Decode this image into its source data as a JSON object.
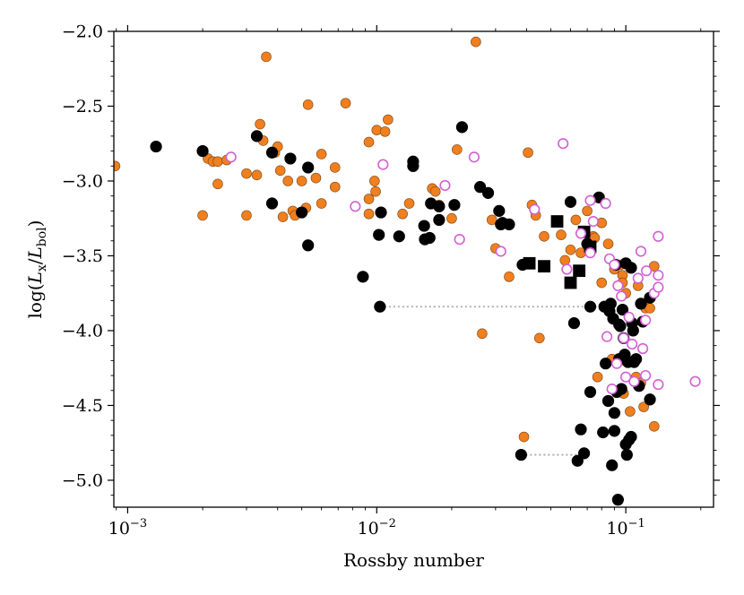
{
  "chart_data": {
    "type": "scatter",
    "xlabel": "Rossby number",
    "ylabel_parts": [
      "log(",
      "L",
      "x",
      "/",
      "L",
      "bol",
      ")"
    ],
    "xscale": "log",
    "xlim": [
      0.00088,
      0.225
    ],
    "ylim": [
      -5.18,
      -2.0
    ],
    "x_ticks": [
      {
        "value": 0.001,
        "base": "10",
        "exp": "−3"
      },
      {
        "value": 0.01,
        "base": "10",
        "exp": "−2"
      },
      {
        "value": 0.1,
        "base": "10",
        "exp": "−1"
      }
    ],
    "y_ticks": [
      {
        "value": -2.0,
        "label": "−2.0"
      },
      {
        "value": -2.5,
        "label": "−2.5"
      },
      {
        "value": -3.0,
        "label": "−3.0"
      },
      {
        "value": -3.5,
        "label": "−3.5"
      },
      {
        "value": -4.0,
        "label": "−4.0"
      },
      {
        "value": -4.5,
        "label": "−4.5"
      },
      {
        "value": -5.0,
        "label": "−5.0"
      }
    ],
    "series": [
      {
        "marker": "circle-filled",
        "color": "#f07f1e",
        "edge": "#7a4a1c",
        "points": [
          [
            0.00089,
            -2.9
          ],
          [
            0.002,
            -3.23
          ],
          [
            0.0021,
            -2.85
          ],
          [
            0.0022,
            -2.87
          ],
          [
            0.0023,
            -2.87
          ],
          [
            0.0025,
            -2.86
          ],
          [
            0.0023,
            -3.02
          ],
          [
            0.003,
            -2.95
          ],
          [
            0.003,
            -3.23
          ],
          [
            0.0033,
            -2.96
          ],
          [
            0.0034,
            -2.62
          ],
          [
            0.0035,
            -2.73
          ],
          [
            0.0036,
            -2.17
          ],
          [
            0.0039,
            -2.81
          ],
          [
            0.004,
            -2.77
          ],
          [
            0.0041,
            -2.93
          ],
          [
            0.0042,
            -3.24
          ],
          [
            0.0044,
            -3.0
          ],
          [
            0.0046,
            -3.2
          ],
          [
            0.0047,
            -3.23
          ],
          [
            0.005,
            -3.0
          ],
          [
            0.0052,
            -3.18
          ],
          [
            0.0053,
            -2.49
          ],
          [
            0.0057,
            -2.98
          ],
          [
            0.006,
            -3.15
          ],
          [
            0.006,
            -2.82
          ],
          [
            0.0068,
            -3.04
          ],
          [
            0.0068,
            -2.91
          ],
          [
            0.0075,
            -2.48
          ],
          [
            0.0093,
            -3.12
          ],
          [
            0.0093,
            -3.22
          ],
          [
            0.0093,
            -2.74
          ],
          [
            0.0098,
            -3.0
          ],
          [
            0.0099,
            -3.07
          ],
          [
            0.01,
            -2.66
          ],
          [
            0.0108,
            -2.67
          ],
          [
            0.0111,
            -2.59
          ],
          [
            0.0127,
            -3.22
          ],
          [
            0.0135,
            -3.15
          ],
          [
            0.0167,
            -3.05
          ],
          [
            0.0172,
            -3.07
          ],
          [
            0.0178,
            -3.16
          ],
          [
            0.02,
            -3.25
          ],
          [
            0.021,
            -2.79
          ],
          [
            0.025,
            -2.07
          ],
          [
            0.0265,
            -4.02
          ],
          [
            0.029,
            -3.26
          ],
          [
            0.03,
            -3.45
          ],
          [
            0.034,
            -3.64
          ],
          [
            0.039,
            -4.71
          ],
          [
            0.0405,
            -2.81
          ],
          [
            0.042,
            -3.16
          ],
          [
            0.0435,
            -3.23
          ],
          [
            0.045,
            -4.05
          ],
          [
            0.047,
            -3.37
          ],
          [
            0.055,
            -3.36
          ],
          [
            0.057,
            -3.53
          ],
          [
            0.06,
            -3.46
          ],
          [
            0.063,
            -3.26
          ],
          [
            0.066,
            -3.48
          ],
          [
            0.07,
            -3.2
          ],
          [
            0.074,
            -3.37
          ],
          [
            0.075,
            -3.38
          ],
          [
            0.077,
            -4.31
          ],
          [
            0.08,
            -3.28
          ],
          [
            0.08,
            -3.68
          ],
          [
            0.085,
            -3.42
          ],
          [
            0.088,
            -4.19
          ],
          [
            0.09,
            -3.59
          ],
          [
            0.095,
            -3.56
          ],
          [
            0.097,
            -3.63
          ],
          [
            0.097,
            -3.68
          ],
          [
            0.098,
            -4.42
          ],
          [
            0.1,
            -3.75
          ],
          [
            0.102,
            -4.2
          ],
          [
            0.104,
            -4.54
          ],
          [
            0.11,
            -4.31
          ],
          [
            0.112,
            -3.7
          ],
          [
            0.115,
            -4.35
          ],
          [
            0.118,
            -4.51
          ],
          [
            0.12,
            -3.85
          ],
          [
            0.125,
            -3.85
          ],
          [
            0.13,
            -4.64
          ],
          [
            0.13,
            -3.57
          ],
          [
            0.095,
            -4.2
          ]
        ]
      },
      {
        "marker": "circle-filled",
        "color": "#000000",
        "edge": "#000000",
        "points": [
          [
            0.0013,
            -2.77
          ],
          [
            0.002,
            -2.8
          ],
          [
            0.0033,
            -2.7
          ],
          [
            0.0038,
            -2.81
          ],
          [
            0.0038,
            -3.15
          ],
          [
            0.0045,
            -2.85
          ],
          [
            0.005,
            -3.21
          ],
          [
            0.0053,
            -2.91
          ],
          [
            0.0053,
            -3.43
          ],
          [
            0.0088,
            -3.64
          ],
          [
            0.0102,
            -3.36
          ],
          [
            0.0103,
            -3.84
          ],
          [
            0.0104,
            -3.21
          ],
          [
            0.0123,
            -3.37
          ],
          [
            0.014,
            -2.87
          ],
          [
            0.014,
            -2.9
          ],
          [
            0.0155,
            -3.3
          ],
          [
            0.0156,
            -3.39
          ],
          [
            0.0163,
            -3.38
          ],
          [
            0.0165,
            -3.15
          ],
          [
            0.0178,
            -3.26
          ],
          [
            0.0178,
            -3.17
          ],
          [
            0.0205,
            -3.16
          ],
          [
            0.022,
            -2.64
          ],
          [
            0.026,
            -3.04
          ],
          [
            0.028,
            -3.08
          ],
          [
            0.031,
            -3.2
          ],
          [
            0.0315,
            -3.29
          ],
          [
            0.032,
            -3.28
          ],
          [
            0.034,
            -3.29
          ],
          [
            0.038,
            -4.83
          ],
          [
            0.0385,
            -3.56
          ],
          [
            0.06,
            -3.14
          ],
          [
            0.062,
            -3.95
          ],
          [
            0.064,
            -4.87
          ],
          [
            0.066,
            -4.66
          ],
          [
            0.068,
            -4.82
          ],
          [
            0.07,
            -3.42
          ],
          [
            0.072,
            -3.84
          ],
          [
            0.072,
            -4.41
          ],
          [
            0.078,
            -3.11
          ],
          [
            0.081,
            -4.68
          ],
          [
            0.082,
            -3.84
          ],
          [
            0.083,
            -4.22
          ],
          [
            0.085,
            -4.47
          ],
          [
            0.086,
            -3.87
          ],
          [
            0.087,
            -3.82
          ],
          [
            0.088,
            -4.9
          ],
          [
            0.089,
            -3.92
          ],
          [
            0.09,
            -4.67
          ],
          [
            0.091,
            -3.56
          ],
          [
            0.09,
            -4.55
          ],
          [
            0.092,
            -4.41
          ],
          [
            0.093,
            -5.13
          ],
          [
            0.094,
            -3.96
          ],
          [
            0.094,
            -4.19
          ],
          [
            0.095,
            -3.97
          ],
          [
            0.096,
            -4.39
          ],
          [
            0.097,
            -3.86
          ],
          [
            0.098,
            -4.05
          ],
          [
            0.099,
            -4.16
          ],
          [
            0.1,
            -3.55
          ],
          [
            0.1,
            -4.76
          ],
          [
            0.101,
            -4.83
          ],
          [
            0.102,
            -4.21
          ],
          [
            0.103,
            -4.73
          ],
          [
            0.105,
            -4.71
          ],
          [
            0.105,
            -3.58
          ],
          [
            0.106,
            -3.95
          ],
          [
            0.107,
            -4.0
          ],
          [
            0.108,
            -4.21
          ],
          [
            0.11,
            -4.19
          ],
          [
            0.113,
            -4.37
          ],
          [
            0.115,
            -3.82
          ],
          [
            0.117,
            -3.94
          ],
          [
            0.125,
            -3.78
          ],
          [
            0.125,
            -4.46
          ]
        ]
      },
      {
        "marker": "square-filled",
        "color": "#000000",
        "edge": "#000000",
        "points": [
          [
            0.041,
            -3.55
          ],
          [
            0.047,
            -3.57
          ],
          [
            0.053,
            -3.27
          ],
          [
            0.06,
            -3.68
          ],
          [
            0.065,
            -3.6
          ],
          [
            0.068,
            -3.34
          ],
          [
            0.072,
            -3.44
          ]
        ]
      },
      {
        "marker": "circle-open",
        "color": "#d45fd4",
        "edge": "#d45fd4",
        "points": [
          [
            0.0026,
            -2.84
          ],
          [
            0.0082,
            -3.17
          ],
          [
            0.0106,
            -2.89
          ],
          [
            0.0188,
            -3.03
          ],
          [
            0.0215,
            -3.39
          ],
          [
            0.0246,
            -2.84
          ],
          [
            0.0315,
            -3.47
          ],
          [
            0.043,
            -3.19
          ],
          [
            0.056,
            -2.75
          ],
          [
            0.058,
            -3.59
          ],
          [
            0.066,
            -3.35
          ],
          [
            0.072,
            -3.13
          ],
          [
            0.072,
            -3.48
          ],
          [
            0.074,
            -3.27
          ],
          [
            0.083,
            -3.15
          ],
          [
            0.084,
            -4.04
          ],
          [
            0.086,
            -3.52
          ],
          [
            0.088,
            -4.39
          ],
          [
            0.09,
            -3.56
          ],
          [
            0.092,
            -4.22
          ],
          [
            0.093,
            -3.7
          ],
          [
            0.096,
            -3.77
          ],
          [
            0.098,
            -4.05
          ],
          [
            0.1,
            -4.31
          ],
          [
            0.103,
            -3.91
          ],
          [
            0.106,
            -4.09
          ],
          [
            0.108,
            -4.34
          ],
          [
            0.112,
            -3.65
          ],
          [
            0.115,
            -3.47
          ],
          [
            0.117,
            -4.12
          ],
          [
            0.12,
            -3.93
          ],
          [
            0.12,
            -4.3
          ],
          [
            0.121,
            -3.6
          ],
          [
            0.13,
            -3.75
          ],
          [
            0.135,
            -3.37
          ],
          [
            0.135,
            -3.63
          ],
          [
            0.135,
            -4.36
          ],
          [
            0.135,
            -3.71
          ],
          [
            0.19,
            -4.34
          ]
        ]
      }
    ],
    "connectors": [
      {
        "from": [
          0.0103,
          -3.84
        ],
        "to": [
          0.084,
          -3.84
        ],
        "style": "dotted",
        "color": "#aaaaaa"
      },
      {
        "from": [
          0.038,
          -4.83
        ],
        "to": [
          0.066,
          -4.83
        ],
        "style": "dotted",
        "color": "#aaaaaa"
      }
    ]
  }
}
